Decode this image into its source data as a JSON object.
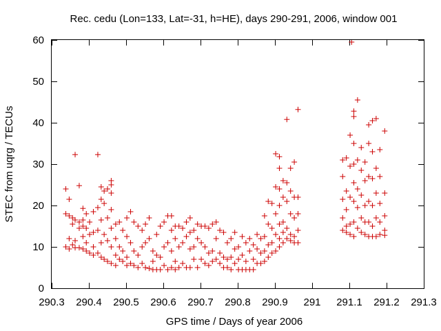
{
  "chart_data": {
    "type": "scatter",
    "title": "Rec. cedu (Lon=133, Lat=-31, h=HE), days 290-291, 2006, window 001",
    "xlabel": "GPS time / Days of year 2006",
    "ylabel": "STEC from uqrg / TECUs",
    "xlim": [
      290.3,
      291.3
    ],
    "ylim": [
      0,
      60
    ],
    "x_ticks": [
      290.3,
      290.4,
      290.5,
      290.6,
      290.7,
      290.8,
      290.9,
      291.0,
      291.1,
      291.2,
      291.3
    ],
    "x_tick_labels": [
      "290.3",
      "290.4",
      "290.5",
      "290.6",
      "290.7",
      "290.8",
      "290.9",
      "291",
      "291.1",
      "291.2",
      "291.3"
    ],
    "y_ticks": [
      0,
      10,
      20,
      30,
      40,
      50,
      60
    ],
    "y_tick_labels": [
      "0",
      "10",
      "20",
      "30",
      "40",
      "50",
      "60"
    ],
    "grid": false,
    "marker": "plus",
    "series": [
      {
        "name": "STEC",
        "color": "#cc0000",
        "points": [
          [
            290.338,
            24.0
          ],
          [
            290.338,
            18.0
          ],
          [
            290.338,
            10.0
          ],
          [
            290.347,
            21.5
          ],
          [
            290.347,
            17.5
          ],
          [
            290.347,
            12.0
          ],
          [
            290.347,
            9.5
          ],
          [
            290.356,
            17.0
          ],
          [
            290.356,
            15.5
          ],
          [
            290.356,
            10.5
          ],
          [
            290.363,
            32.3
          ],
          [
            290.363,
            16.5
          ],
          [
            290.363,
            11.5
          ],
          [
            290.363,
            9.8
          ],
          [
            290.374,
            24.8
          ],
          [
            290.374,
            16.0
          ],
          [
            290.374,
            14.5
          ],
          [
            290.374,
            9.8
          ],
          [
            290.384,
            19.3
          ],
          [
            290.384,
            16.5
          ],
          [
            290.384,
            15.0
          ],
          [
            290.384,
            12.5
          ],
          [
            290.384,
            9.5
          ],
          [
            290.393,
            18.0
          ],
          [
            290.393,
            14.5
          ],
          [
            290.393,
            11.0
          ],
          [
            290.393,
            9.0
          ],
          [
            290.402,
            16.0
          ],
          [
            290.402,
            13.0
          ],
          [
            290.402,
            8.5
          ],
          [
            290.412,
            18.5
          ],
          [
            290.412,
            13.5
          ],
          [
            290.412,
            10.0
          ],
          [
            290.412,
            8.0
          ],
          [
            290.424,
            32.3
          ],
          [
            290.424,
            19.5
          ],
          [
            290.424,
            14.0
          ],
          [
            290.424,
            8.5
          ],
          [
            290.433,
            24.5
          ],
          [
            290.433,
            21.5
          ],
          [
            290.433,
            16.5
          ],
          [
            290.433,
            11.0
          ],
          [
            290.433,
            7.5
          ],
          [
            290.441,
            23.5
          ],
          [
            290.441,
            20.5
          ],
          [
            290.441,
            13.0
          ],
          [
            290.441,
            7.0
          ],
          [
            290.45,
            24.0
          ],
          [
            290.45,
            17.0
          ],
          [
            290.45,
            11.5
          ],
          [
            290.45,
            6.5
          ],
          [
            290.46,
            26.0
          ],
          [
            290.46,
            25.0
          ],
          [
            290.46,
            23.0
          ],
          [
            290.46,
            19.0
          ],
          [
            290.46,
            14.5
          ],
          [
            290.46,
            10.0
          ],
          [
            290.46,
            6.0
          ],
          [
            290.472,
            15.5
          ],
          [
            290.472,
            12.0
          ],
          [
            290.472,
            8.0
          ],
          [
            290.472,
            5.5
          ],
          [
            290.482,
            16.0
          ],
          [
            290.482,
            10.0
          ],
          [
            290.482,
            7.0
          ],
          [
            290.491,
            14.0
          ],
          [
            290.491,
            9.0
          ],
          [
            290.491,
            6.5
          ],
          [
            290.502,
            17.0
          ],
          [
            290.502,
            12.5
          ],
          [
            290.502,
            7.5
          ],
          [
            290.502,
            5.5
          ],
          [
            290.512,
            18.5
          ],
          [
            290.512,
            11.0
          ],
          [
            290.512,
            6.0
          ],
          [
            290.521,
            16.0
          ],
          [
            290.521,
            9.0
          ],
          [
            290.521,
            5.5
          ],
          [
            290.532,
            15.0
          ],
          [
            290.532,
            8.0
          ],
          [
            290.532,
            5.0
          ],
          [
            290.543,
            14.0
          ],
          [
            290.543,
            10.0
          ],
          [
            290.543,
            6.0
          ],
          [
            290.552,
            15.5
          ],
          [
            290.552,
            11.0
          ],
          [
            290.552,
            5.0
          ],
          [
            290.562,
            17.0
          ],
          [
            290.562,
            12.0
          ],
          [
            290.562,
            4.8
          ],
          [
            290.572,
            9.0
          ],
          [
            290.572,
            6.5
          ],
          [
            290.572,
            4.5
          ],
          [
            290.582,
            13.0
          ],
          [
            290.582,
            8.0
          ],
          [
            290.582,
            4.5
          ],
          [
            290.592,
            15.0
          ],
          [
            290.592,
            7.5
          ],
          [
            290.592,
            4.5
          ],
          [
            290.602,
            16.0
          ],
          [
            290.602,
            10.0
          ],
          [
            290.602,
            5.5
          ],
          [
            290.612,
            17.5
          ],
          [
            290.612,
            11.0
          ],
          [
            290.612,
            4.5
          ],
          [
            290.622,
            17.5
          ],
          [
            290.622,
            14.0
          ],
          [
            290.622,
            9.0
          ],
          [
            290.622,
            5.0
          ],
          [
            290.632,
            15.0
          ],
          [
            290.632,
            12.0
          ],
          [
            290.632,
            6.5
          ],
          [
            290.632,
            4.5
          ],
          [
            290.642,
            15.0
          ],
          [
            290.642,
            10.0
          ],
          [
            290.642,
            5.0
          ],
          [
            290.652,
            14.5
          ],
          [
            290.652,
            11.0
          ],
          [
            290.652,
            6.0
          ],
          [
            290.662,
            16.0
          ],
          [
            290.662,
            12.5
          ],
          [
            290.662,
            5.0
          ],
          [
            290.672,
            17.0
          ],
          [
            290.672,
            13.5
          ],
          [
            290.672,
            9.5
          ],
          [
            290.672,
            5.0
          ],
          [
            290.682,
            14.0
          ],
          [
            290.682,
            10.0
          ],
          [
            290.682,
            7.0
          ],
          [
            290.692,
            15.5
          ],
          [
            290.692,
            12.0
          ],
          [
            290.692,
            5.0
          ],
          [
            290.702,
            15.0
          ],
          [
            290.702,
            11.0
          ],
          [
            290.702,
            7.0
          ],
          [
            290.712,
            15.0
          ],
          [
            290.712,
            10.0
          ],
          [
            290.712,
            6.0
          ],
          [
            290.722,
            14.5
          ],
          [
            290.722,
            8.5
          ],
          [
            290.722,
            5.5
          ],
          [
            290.732,
            15.5
          ],
          [
            290.732,
            9.0
          ],
          [
            290.732,
            6.5
          ],
          [
            290.742,
            16.0
          ],
          [
            290.742,
            12.0
          ],
          [
            290.742,
            7.0
          ],
          [
            290.752,
            14.0
          ],
          [
            290.752,
            8.5
          ],
          [
            290.752,
            6.0
          ],
          [
            290.762,
            13.5
          ],
          [
            290.762,
            7.5
          ],
          [
            290.762,
            5.0
          ],
          [
            290.772,
            11.0
          ],
          [
            290.772,
            7.0
          ],
          [
            290.772,
            5.0
          ],
          [
            290.782,
            12.0
          ],
          [
            290.782,
            7.5
          ],
          [
            290.782,
            4.5
          ],
          [
            290.792,
            13.5
          ],
          [
            290.792,
            9.5
          ],
          [
            290.792,
            6.0
          ],
          [
            290.802,
            10.0
          ],
          [
            290.802,
            7.0
          ],
          [
            290.802,
            4.5
          ],
          [
            290.812,
            12.5
          ],
          [
            290.812,
            8.0
          ],
          [
            290.812,
            4.5
          ],
          [
            290.822,
            11.0
          ],
          [
            290.822,
            6.5
          ],
          [
            290.822,
            4.5
          ],
          [
            290.832,
            12.0
          ],
          [
            290.832,
            9.0
          ],
          [
            290.832,
            4.5
          ],
          [
            290.842,
            10.5
          ],
          [
            290.842,
            7.0
          ],
          [
            290.842,
            4.5
          ],
          [
            290.852,
            13.0
          ],
          [
            290.852,
            9.5
          ],
          [
            290.852,
            6.0
          ],
          [
            290.862,
            12.0
          ],
          [
            290.862,
            8.5
          ],
          [
            290.862,
            6.0
          ],
          [
            290.872,
            17.5
          ],
          [
            290.872,
            12.5
          ],
          [
            290.872,
            9.0
          ],
          [
            290.872,
            6.5
          ],
          [
            290.882,
            21.0
          ],
          [
            290.882,
            15.5
          ],
          [
            290.882,
            10.5
          ],
          [
            290.882,
            7.5
          ],
          [
            290.892,
            20.5
          ],
          [
            290.892,
            14.5
          ],
          [
            290.892,
            11.0
          ],
          [
            290.892,
            8.5
          ],
          [
            290.902,
            32.5
          ],
          [
            290.902,
            24.5
          ],
          [
            290.902,
            18.0
          ],
          [
            290.902,
            13.0
          ],
          [
            290.902,
            9.0
          ],
          [
            290.912,
            31.8
          ],
          [
            290.912,
            29.0
          ],
          [
            290.912,
            24.0
          ],
          [
            290.912,
            20.0
          ],
          [
            290.912,
            15.5
          ],
          [
            290.912,
            12.0
          ],
          [
            290.912,
            10.0
          ],
          [
            290.922,
            26.0
          ],
          [
            290.922,
            22.0
          ],
          [
            290.922,
            16.0
          ],
          [
            290.922,
            13.5
          ],
          [
            290.922,
            11.0
          ],
          [
            290.932,
            40.8
          ],
          [
            290.932,
            25.5
          ],
          [
            290.932,
            21.0
          ],
          [
            290.932,
            14.5
          ],
          [
            290.932,
            12.0
          ],
          [
            290.942,
            29.0
          ],
          [
            290.942,
            23.5
          ],
          [
            290.942,
            18.0
          ],
          [
            290.942,
            13.0
          ],
          [
            290.942,
            11.5
          ],
          [
            290.952,
            30.5
          ],
          [
            290.952,
            22.0
          ],
          [
            290.952,
            17.0
          ],
          [
            290.952,
            12.5
          ],
          [
            290.952,
            11.0
          ],
          [
            290.962,
            43.2
          ],
          [
            290.962,
            22.0
          ],
          [
            290.962,
            18.0
          ],
          [
            290.962,
            14.0
          ],
          [
            290.962,
            11.0
          ],
          [
            291.082,
            31.0
          ],
          [
            291.082,
            27.0
          ],
          [
            291.082,
            21.5
          ],
          [
            291.082,
            17.0
          ],
          [
            291.082,
            14.0
          ],
          [
            291.092,
            31.5
          ],
          [
            291.092,
            23.5
          ],
          [
            291.092,
            19.0
          ],
          [
            291.092,
            15.0
          ],
          [
            291.092,
            13.5
          ],
          [
            291.102,
            37.0
          ],
          [
            291.102,
            29.5
          ],
          [
            291.102,
            22.0
          ],
          [
            291.102,
            15.5
          ],
          [
            291.102,
            13.0
          ],
          [
            291.112,
            42.8
          ],
          [
            291.112,
            41.5
          ],
          [
            291.112,
            35.0
          ],
          [
            291.112,
            30.0
          ],
          [
            291.112,
            25.5
          ],
          [
            291.112,
            21.0
          ],
          [
            291.112,
            16.0
          ],
          [
            291.112,
            12.5
          ],
          [
            291.122,
            45.5
          ],
          [
            291.122,
            31.0
          ],
          [
            291.122,
            24.0
          ],
          [
            291.122,
            19.5
          ],
          [
            291.122,
            14.5
          ],
          [
            291.132,
            34.0
          ],
          [
            291.132,
            28.5
          ],
          [
            291.132,
            22.5
          ],
          [
            291.132,
            17.0
          ],
          [
            291.132,
            13.5
          ],
          [
            291.142,
            30.5
          ],
          [
            291.142,
            26.0
          ],
          [
            291.142,
            20.0
          ],
          [
            291.142,
            16.0
          ],
          [
            291.142,
            13.0
          ],
          [
            291.152,
            39.5
          ],
          [
            291.152,
            35.0
          ],
          [
            291.152,
            27.0
          ],
          [
            291.152,
            21.0
          ],
          [
            291.152,
            16.0
          ],
          [
            291.152,
            12.5
          ],
          [
            291.162,
            40.5
          ],
          [
            291.162,
            33.0
          ],
          [
            291.162,
            26.5
          ],
          [
            291.162,
            20.0
          ],
          [
            291.162,
            15.0
          ],
          [
            291.162,
            12.5
          ],
          [
            291.172,
            41.0
          ],
          [
            291.172,
            29.0
          ],
          [
            291.172,
            23.0
          ],
          [
            291.172,
            17.0
          ],
          [
            291.172,
            12.5
          ],
          [
            291.182,
            33.5
          ],
          [
            291.182,
            27.0
          ],
          [
            291.182,
            20.5
          ],
          [
            291.182,
            16.0
          ],
          [
            291.182,
            13.0
          ],
          [
            291.195,
            38.0
          ],
          [
            291.195,
            23.0
          ],
          [
            291.195,
            17.5
          ],
          [
            291.195,
            14.0
          ],
          [
            291.195,
            12.8
          ],
          [
            291.106,
            59.5
          ]
        ]
      }
    ]
  }
}
